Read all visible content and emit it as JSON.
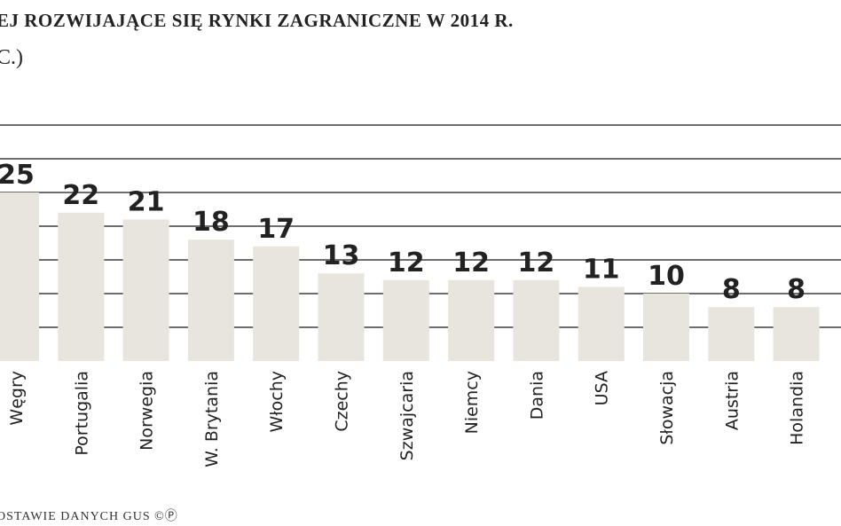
{
  "chart_data": {
    "type": "bar",
    "title": "EJ ROZWIJAJĄCE SIĘ RYNKI ZAGRANICZNE W 2014 R.",
    "subtitle": "C.)",
    "source": "OSTAWIE DANYCH GUS ©Ⓟ",
    "categories": [
      "Węgry",
      "Portugalia",
      "Norwegia",
      "W. Brytania",
      "Włochy",
      "Czechy",
      "Szwajcaria",
      "Niemcy",
      "Dania",
      "USA",
      "Słowacja",
      "Austria",
      "Holandia"
    ],
    "values": [
      25,
      22,
      21,
      18,
      17,
      13,
      12,
      12,
      12,
      11,
      10,
      8,
      8
    ],
    "color": "#e8e5df",
    "ylim": [
      0,
      35
    ],
    "yticks": [
      5,
      10,
      15,
      20,
      25,
      30,
      35
    ],
    "grid": true
  }
}
